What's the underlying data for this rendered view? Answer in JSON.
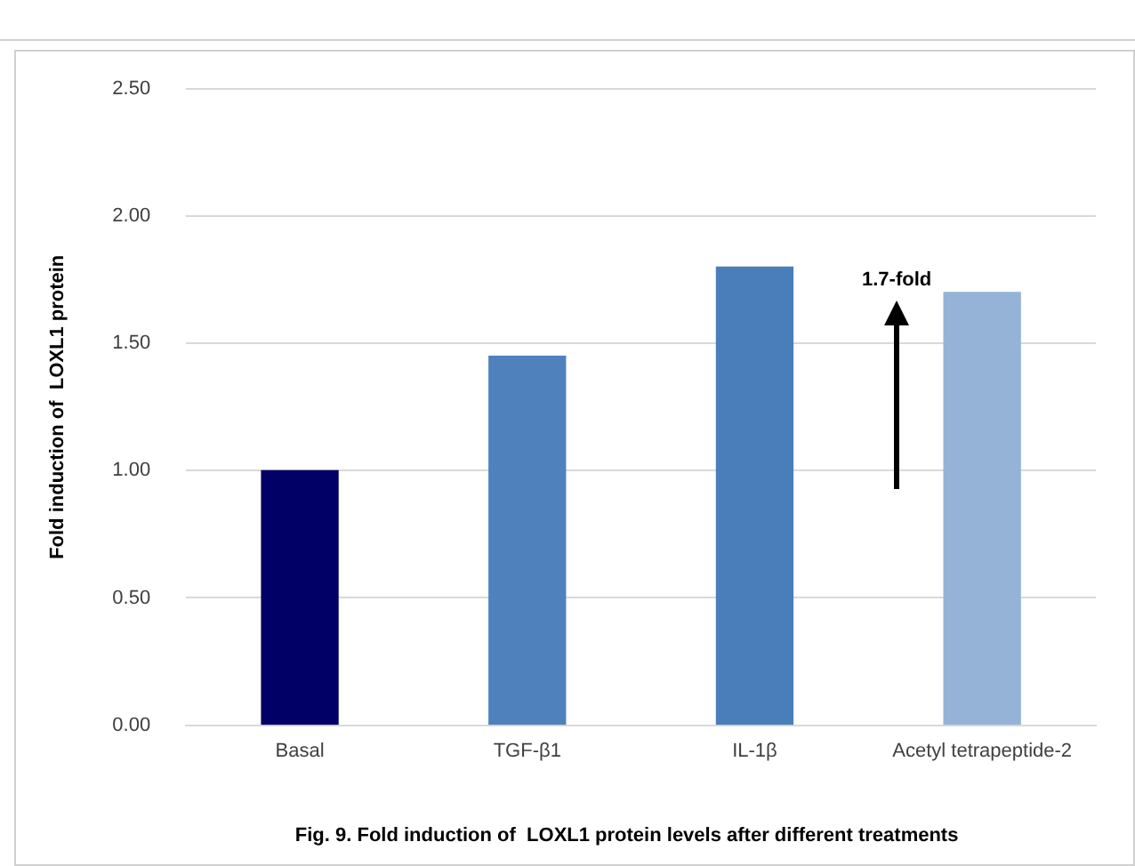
{
  "chart_data": {
    "type": "bar",
    "ylabel": "Fold induction of  LOXL1 protein",
    "categories": [
      "Basal",
      "TGF-β1",
      "IL-1β",
      "Acetyl tetrapeptide-2"
    ],
    "values": [
      1.0,
      1.45,
      1.8,
      1.7
    ],
    "colors": [
      "#000066",
      "#4f81bd",
      "#4a7ebb",
      "#95b3d7"
    ],
    "ylim": [
      0,
      2.5
    ],
    "yticks": [
      {
        "value": 0,
        "label": "0.00"
      },
      {
        "value": 0.5,
        "label": "0.50"
      },
      {
        "value": 1,
        "label": "1.00"
      },
      {
        "value": 1.5,
        "label": "1.50"
      },
      {
        "value": 2,
        "label": "2.00"
      },
      {
        "value": 2.5,
        "label": "2.50"
      }
    ],
    "grid": "y",
    "legend": false,
    "annotations": [
      "1.7-fold",
      "Fig. 9. Fold induction of  LOXL1 protein levels after different treatments"
    ]
  }
}
